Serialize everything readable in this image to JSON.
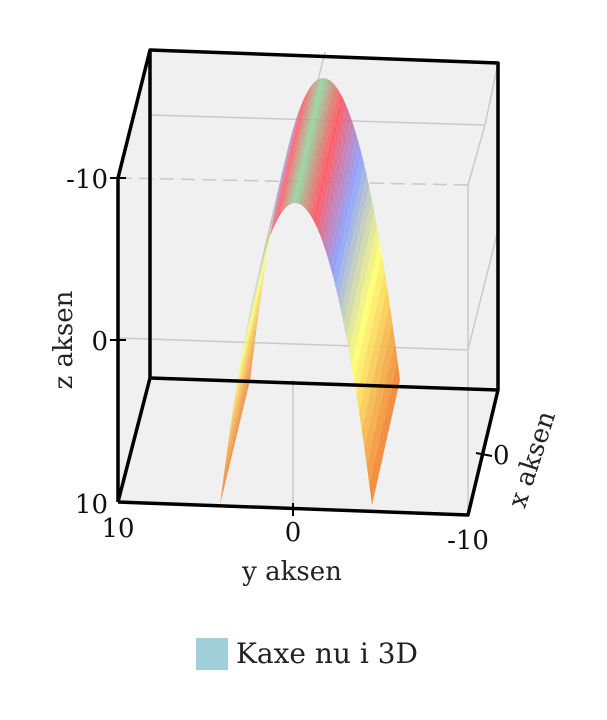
{
  "chart_data": {
    "type": "surface3d",
    "title": "",
    "xlabel": "x aksen",
    "ylabel": "y aksen",
    "zlabel": "z aksen",
    "x_ticks": [
      "-10",
      "0"
    ],
    "y_ticks": [
      "10",
      "0",
      "-10"
    ],
    "z_ticks": [
      "-10",
      "0",
      "10"
    ],
    "zlim": [
      10,
      -20
    ],
    "surface": {
      "shape": "parabolic ridge, z = -(y^2)/3 - 18 near the peak, falling toward z ≈ 10 at |y| ≈ 6",
      "y": [
        -6,
        -4,
        -2,
        0,
        2,
        4,
        6
      ],
      "z": [
        10,
        -4,
        -14,
        -18,
        -14,
        -4,
        10
      ]
    },
    "colorscale": [
      "#f08030",
      "#ffff70",
      "#8aa0ff",
      "#ff5560",
      "#90d8a0"
    ],
    "legend_placement": "bottom-center",
    "legend": [
      {
        "label": "Kaxe nu i 3D",
        "color": "#9fd0da"
      }
    ]
  }
}
